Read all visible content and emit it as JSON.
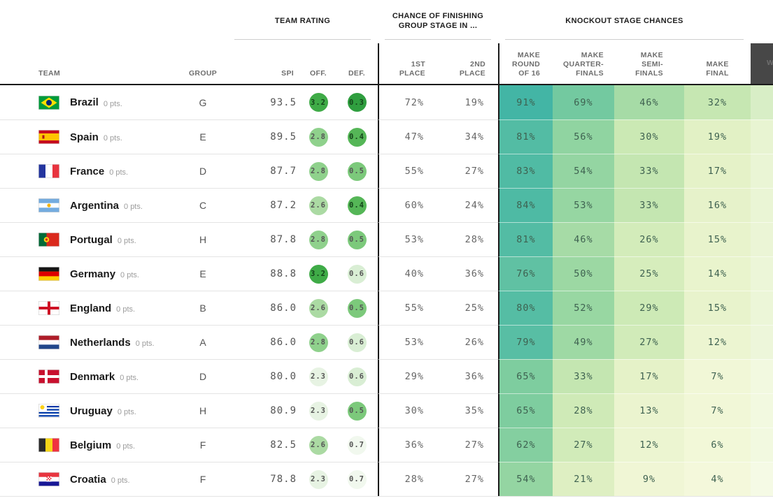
{
  "header": {
    "group_labels": {
      "team_rating": "TEAM RATING",
      "group_stage": "CHANCE OF FINISHING\nGROUP STAGE IN ...",
      "knockout": "KNOCKOUT STAGE CHANCES"
    },
    "columns": {
      "team": "TEAM",
      "group": "GROUP",
      "spi": "SPI",
      "off": "OFF.",
      "def": "DEF.",
      "first_place": "1ST\nPLACE",
      "second_place": "2ND\nPLACE",
      "make_r16": "MAKE\nROUND\nOF 16",
      "make_qf": "MAKE\nQUARTER-\nFINALS",
      "make_sf": "MAKE\nSEMI-\nFINALS",
      "make_final": "MAKE\nFINAL",
      "win_partial": "W"
    }
  },
  "colors": {
    "section_border": "#1a1a1a",
    "sort_header_bg": "#474747",
    "cell_scale": [
      [
        0,
        "#f7fadf"
      ],
      [
        10,
        "#eff6d4"
      ],
      [
        20,
        "#e0f0c3"
      ],
      [
        30,
        "#cbe9b4"
      ],
      [
        40,
        "#b4e0aa"
      ],
      [
        50,
        "#9cd8a3"
      ],
      [
        65,
        "#7ecd9f"
      ],
      [
        80,
        "#55bda4"
      ],
      [
        95,
        "#3cb2a5"
      ]
    ],
    "off_circles": {
      "3.2": "#3fab47",
      "2.8": "#8fd18c",
      "2.6": "#abdaa3",
      "2.3": "#e7f3e3"
    },
    "def_circles": {
      "0.3": "#2f9e3f",
      "0.4": "#55b657",
      "0.5": "#7cc97b",
      "0.6": "#d9eed4",
      "0.7": "#f1f8ee"
    }
  },
  "rows": [
    {
      "flag": "br",
      "name": "Brazil",
      "pts": "0 pts.",
      "group": "G",
      "spi": "93.5",
      "off": "3.2",
      "def": "0.3",
      "p1": "72%",
      "p2": "19%",
      "r16": "91%",
      "qf": "69%",
      "sf": "46%",
      "final": "32%",
      "win_color": "#d8eec6"
    },
    {
      "flag": "es",
      "name": "Spain",
      "pts": "0 pts.",
      "group": "E",
      "spi": "89.5",
      "off": "2.8",
      "def": "0.4",
      "p1": "47%",
      "p2": "34%",
      "r16": "81%",
      "qf": "56%",
      "sf": "30%",
      "final": "19%",
      "win_color": "#e8f4d2"
    },
    {
      "flag": "fr",
      "name": "France",
      "pts": "0 pts.",
      "group": "D",
      "spi": "87.7",
      "off": "2.8",
      "def": "0.5",
      "p1": "55%",
      "p2": "27%",
      "r16": "83%",
      "qf": "54%",
      "sf": "33%",
      "final": "17%",
      "win_color": "#eaf5d5"
    },
    {
      "flag": "ar",
      "name": "Argentina",
      "pts": "0 pts.",
      "group": "C",
      "spi": "87.2",
      "off": "2.6",
      "def": "0.4",
      "p1": "60%",
      "p2": "24%",
      "r16": "84%",
      "qf": "53%",
      "sf": "33%",
      "final": "16%",
      "win_color": "#eaf5d5"
    },
    {
      "flag": "pt",
      "name": "Portugal",
      "pts": "0 pts.",
      "group": "H",
      "spi": "87.8",
      "off": "2.8",
      "def": "0.5",
      "p1": "53%",
      "p2": "28%",
      "r16": "81%",
      "qf": "46%",
      "sf": "26%",
      "final": "15%",
      "win_color": "#ebf5d6"
    },
    {
      "flag": "de",
      "name": "Germany",
      "pts": "0 pts.",
      "group": "E",
      "spi": "88.8",
      "off": "3.2",
      "def": "0.6",
      "p1": "40%",
      "p2": "36%",
      "r16": "76%",
      "qf": "50%",
      "sf": "25%",
      "final": "14%",
      "win_color": "#ecf6d8"
    },
    {
      "flag": "en",
      "name": "England",
      "pts": "0 pts.",
      "group": "B",
      "spi": "86.0",
      "off": "2.6",
      "def": "0.5",
      "p1": "55%",
      "p2": "25%",
      "r16": "80%",
      "qf": "52%",
      "sf": "29%",
      "final": "15%",
      "win_color": "#ecf6d8"
    },
    {
      "flag": "nl",
      "name": "Netherlands",
      "pts": "0 pts.",
      "group": "A",
      "spi": "86.0",
      "off": "2.8",
      "def": "0.6",
      "p1": "53%",
      "p2": "26%",
      "r16": "79%",
      "qf": "49%",
      "sf": "27%",
      "final": "12%",
      "win_color": "#edf6da"
    },
    {
      "flag": "dk",
      "name": "Denmark",
      "pts": "0 pts.",
      "group": "D",
      "spi": "80.0",
      "off": "2.3",
      "def": "0.6",
      "p1": "29%",
      "p2": "36%",
      "r16": "65%",
      "qf": "33%",
      "sf": "17%",
      "final": "7%",
      "win_color": "#f2f9e0"
    },
    {
      "flag": "uy",
      "name": "Uruguay",
      "pts": "0 pts.",
      "group": "H",
      "spi": "80.9",
      "off": "2.3",
      "def": "0.5",
      "p1": "30%",
      "p2": "35%",
      "r16": "65%",
      "qf": "28%",
      "sf": "13%",
      "final": "7%",
      "win_color": "#f2f9e0"
    },
    {
      "flag": "be",
      "name": "Belgium",
      "pts": "0 pts.",
      "group": "F",
      "spi": "82.5",
      "off": "2.6",
      "def": "0.7",
      "p1": "36%",
      "p2": "27%",
      "r16": "62%",
      "qf": "27%",
      "sf": "12%",
      "final": "6%",
      "win_color": "#f2f9e0"
    },
    {
      "flag": "hr",
      "name": "Croatia",
      "pts": "0 pts.",
      "group": "F",
      "spi": "78.8",
      "off": "2.3",
      "def": "0.7",
      "p1": "28%",
      "p2": "27%",
      "r16": "54%",
      "qf": "21%",
      "sf": "9%",
      "final": "4%",
      "win_color": "#f5fae5"
    }
  ]
}
